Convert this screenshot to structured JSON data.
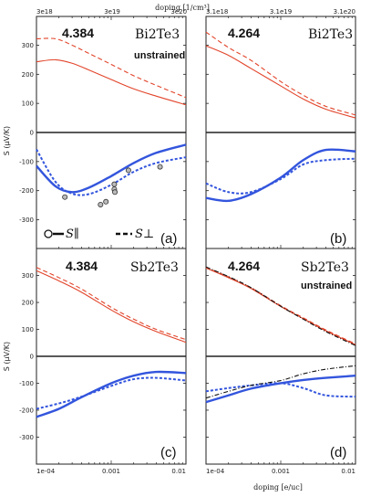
{
  "axis_text": {
    "ylabel": "S (μV/K)",
    "bottom_xlabel": "doping [e/uc]",
    "top_xlabel": "doping [1/cm³]"
  },
  "legend": {
    "par_label": "S∥",
    "perp_label": "S⊥"
  },
  "colors": {
    "red": "#e2442a",
    "blue": "#3355dd",
    "black": "#111111",
    "frame": "#222222"
  },
  "chart_data": [
    {
      "type": "line",
      "panel_letter": "(a)",
      "lattice": "4.384",
      "material": "Bi2Te3",
      "note": "unstrained",
      "xscale": "log",
      "xlim": [
        0.0001,
        0.01
      ],
      "ylim": [
        -380,
        380
      ],
      "xticks": [
        0.0001,
        0.001,
        0.01
      ],
      "xtick_labels": [],
      "yticks": [
        -300,
        -200,
        -100,
        0,
        100,
        200,
        300
      ],
      "ytick_labels": [
        "-300",
        "-200",
        "-100",
        "0",
        "100",
        "200",
        "300"
      ],
      "top_ticks": [
        0.0001,
        0.00103,
        0.0103
      ],
      "top_tick_labels": [
        "3e18",
        "3e19",
        "3e20"
      ],
      "x": [
        0.0001,
        0.00018,
        0.0003,
        0.0005,
        0.001,
        0.002,
        0.004,
        0.01
      ],
      "series": [
        {
          "color": "red",
          "dash": "solid",
          "values": [
            243,
            250,
            238,
            215,
            182,
            150,
            125,
            95
          ]
        },
        {
          "color": "red",
          "dash": "dashed",
          "values": [
            322,
            322,
            300,
            272,
            234,
            195,
            162,
            120
          ]
        },
        {
          "color": "blue",
          "dash": "solid",
          "values": [
            -115,
            -185,
            -205,
            -190,
            -150,
            -105,
            -70,
            -42
          ]
        },
        {
          "color": "blue",
          "dash": "dotted",
          "values": [
            -58,
            -170,
            -210,
            -212,
            -180,
            -135,
            -105,
            -85
          ]
        }
      ],
      "markers": [
        {
          "x": 0.00024,
          "y": -222
        },
        {
          "x": 0.00072,
          "y": -248
        },
        {
          "x": 0.00085,
          "y": -238
        },
        {
          "x": 0.0011,
          "y": -178
        },
        {
          "x": 0.0011,
          "y": -195
        },
        {
          "x": 0.00112,
          "y": -205
        },
        {
          "x": 0.0017,
          "y": -130
        },
        {
          "x": 0.0045,
          "y": -118
        }
      ]
    },
    {
      "type": "line",
      "panel_letter": "(b)",
      "lattice": "4.264",
      "material": "Bi2Te3",
      "xscale": "log",
      "xlim": [
        0.0001,
        0.01
      ],
      "ylim": [
        -380,
        380
      ],
      "xticks": [
        0.0001,
        0.001,
        0.01
      ],
      "xtick_labels": [],
      "yticks": [
        -300,
        -200,
        -100,
        0,
        100,
        200,
        300
      ],
      "ytick_labels": [],
      "top_ticks": [
        0.0001,
        0.001,
        0.01
      ],
      "top_tick_labels": [
        "3.1e18",
        "3.1e19",
        "3.1e20"
      ],
      "x": [
        0.0001,
        0.0002,
        0.0004,
        0.001,
        0.002,
        0.004,
        0.01
      ],
      "series": [
        {
          "color": "red",
          "dash": "solid",
          "values": [
            298,
            265,
            220,
            160,
            115,
            80,
            50
          ]
        },
        {
          "color": "red",
          "dash": "dashed",
          "values": [
            345,
            292,
            248,
            175,
            128,
            90,
            60
          ]
        },
        {
          "color": "blue",
          "dash": "solid",
          "values": [
            -225,
            -235,
            -212,
            -155,
            -95,
            -60,
            -65
          ]
        },
        {
          "color": "blue",
          "dash": "dotted",
          "values": [
            -175,
            -205,
            -205,
            -160,
            -110,
            -95,
            -90
          ]
        }
      ]
    },
    {
      "type": "line",
      "panel_letter": "(c)",
      "lattice": "4.384",
      "material": "Sb2Te3",
      "xscale": "log",
      "xlim": [
        0.0001,
        0.01
      ],
      "ylim": [
        -380,
        380
      ],
      "xticks": [
        0.0001,
        0.001,
        0.01
      ],
      "xtick_labels": [
        "1e-04",
        "0.001",
        "0.01"
      ],
      "yticks": [
        -300,
        -200,
        -100,
        0,
        100,
        200,
        300
      ],
      "ytick_labels": [
        "-300",
        "-200",
        "-100",
        "0",
        "100",
        "200",
        "300"
      ],
      "top_ticks": [],
      "top_tick_labels": [],
      "x": [
        0.0001,
        0.0002,
        0.0004,
        0.001,
        0.002,
        0.004,
        0.01
      ],
      "series": [
        {
          "color": "red",
          "dash": "solid",
          "values": [
            318,
            280,
            238,
            172,
            128,
            92,
            52
          ]
        },
        {
          "color": "red",
          "dash": "dashed",
          "values": [
            330,
            292,
            250,
            182,
            138,
            100,
            62
          ]
        },
        {
          "color": "blue",
          "dash": "solid",
          "values": [
            -225,
            -195,
            -152,
            -100,
            -72,
            -58,
            -62
          ]
        },
        {
          "color": "blue",
          "dash": "dotted",
          "values": [
            -195,
            -175,
            -150,
            -110,
            -85,
            -80,
            -90
          ]
        }
      ]
    },
    {
      "type": "line",
      "panel_letter": "(d)",
      "lattice": "4.264",
      "material": "Sb2Te3",
      "note": "unstrained",
      "xscale": "log",
      "xlim": [
        0.0001,
        0.01
      ],
      "ylim": [
        -380,
        380
      ],
      "xticks": [
        0.0001,
        0.001,
        0.01
      ],
      "xtick_labels": [
        "1e-04",
        "0.001",
        "0.01"
      ],
      "yticks": [
        -300,
        -200,
        -100,
        0,
        100,
        200,
        300
      ],
      "ytick_labels": [],
      "top_ticks": [],
      "top_tick_labels": [],
      "x": [
        0.0001,
        0.0002,
        0.0004,
        0.001,
        0.002,
        0.004,
        0.01
      ],
      "series": [
        {
          "color": "red",
          "dash": "solid",
          "values": [
            328,
            292,
            252,
            185,
            140,
            95,
            43
          ]
        },
        {
          "color": "red",
          "dash": "dashed",
          "values": [
            330,
            295,
            255,
            188,
            143,
            98,
            46
          ]
        },
        {
          "color": "black",
          "dash": "dashdot",
          "values": [
            332,
            296,
            255,
            186,
            138,
            92,
            40
          ]
        },
        {
          "color": "blue",
          "dash": "solid",
          "values": [
            -170,
            -145,
            -120,
            -100,
            -88,
            -80,
            -72
          ]
        },
        {
          "color": "blue",
          "dash": "dotted",
          "values": [
            -130,
            -118,
            -108,
            -100,
            -118,
            -145,
            -150
          ]
        },
        {
          "color": "black",
          "dash": "dashdot",
          "values": [
            -155,
            -130,
            -108,
            -90,
            -65,
            -48,
            -35
          ]
        }
      ]
    }
  ]
}
